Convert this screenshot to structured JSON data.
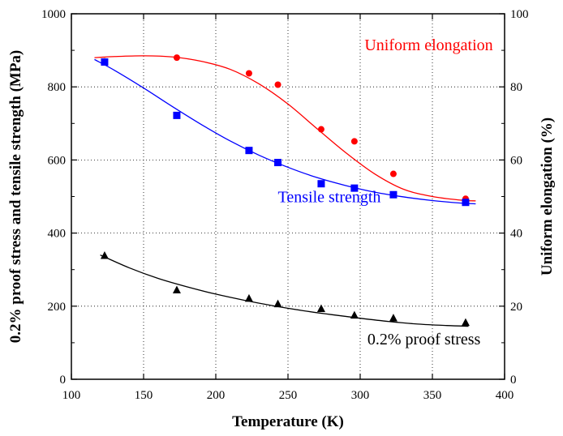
{
  "chart_data": {
    "type": "scatter",
    "xlabel": "Temperature (K)",
    "ylabel": "0.2% proof stress and tensile strength (MPa)",
    "y2label": "Uniform elongation (%)",
    "xlim": [
      100,
      400
    ],
    "ylim": [
      0,
      1000
    ],
    "y2lim": [
      0,
      100
    ],
    "xticks": [
      100,
      150,
      200,
      250,
      300,
      350,
      400
    ],
    "yticks": [
      0,
      200,
      400,
      600,
      800,
      1000
    ],
    "y2ticks": [
      0,
      20,
      40,
      60,
      80,
      100
    ],
    "grid": true,
    "series": [
      {
        "name": "Uniform elongation",
        "axis": "right",
        "marker": "circle",
        "color": "#ff0000",
        "x": [
          123,
          173,
          223,
          243,
          273,
          296,
          323,
          373
        ],
        "y": [
          87,
          88,
          83.7,
          80.6,
          68.4,
          65.1,
          56.2,
          49.4
        ],
        "fit_x": [
          116,
          130,
          150,
          170,
          190,
          210,
          230,
          250,
          270,
          290,
          310,
          330,
          350,
          370,
          380
        ],
        "fit_y": [
          88,
          88.3,
          88.5,
          88.2,
          87.0,
          84.8,
          80.8,
          75.3,
          68.6,
          62.0,
          56.2,
          52.0,
          50.0,
          49.0,
          48.8
        ]
      },
      {
        "name": "Tensile strength",
        "axis": "left",
        "marker": "square",
        "color": "#0000ff",
        "x": [
          123,
          173,
          223,
          243,
          273,
          296,
          323,
          373
        ],
        "y": [
          868,
          722,
          626,
          593,
          535,
          523,
          505,
          484
        ],
        "fit_x": [
          116,
          130,
          150,
          170,
          190,
          210,
          230,
          250,
          270,
          290,
          310,
          330,
          350,
          370,
          380
        ],
        "fit_y": [
          875,
          845,
          797,
          746,
          697,
          652,
          613,
          580,
          552,
          530,
          512,
          499,
          489,
          482,
          480
        ]
      },
      {
        "name": "0.2% proof stress",
        "axis": "left",
        "marker": "triangle",
        "color": "#000000",
        "x": [
          123,
          173,
          223,
          243,
          273,
          296,
          323,
          373
        ],
        "y": [
          338,
          244,
          221,
          206,
          193,
          175,
          167,
          155
        ],
        "fit_x": [
          120,
          140,
          160,
          180,
          200,
          220,
          240,
          260,
          280,
          300,
          320,
          340,
          360,
          375
        ],
        "fit_y": [
          340,
          305,
          276,
          253,
          233,
          216,
          201,
          188,
          177,
          167,
          158,
          151,
          147,
          145
        ]
      }
    ],
    "annotations": [
      {
        "text": "Uniform elongation",
        "color": "#ff0000",
        "x": 303,
        "y": 900
      },
      {
        "text": "Tensile strength",
        "color": "#0000ff",
        "x": 243,
        "y": 485
      },
      {
        "text": "0.2% proof stress",
        "color": "#000000",
        "x": 305,
        "y": 95
      }
    ]
  }
}
